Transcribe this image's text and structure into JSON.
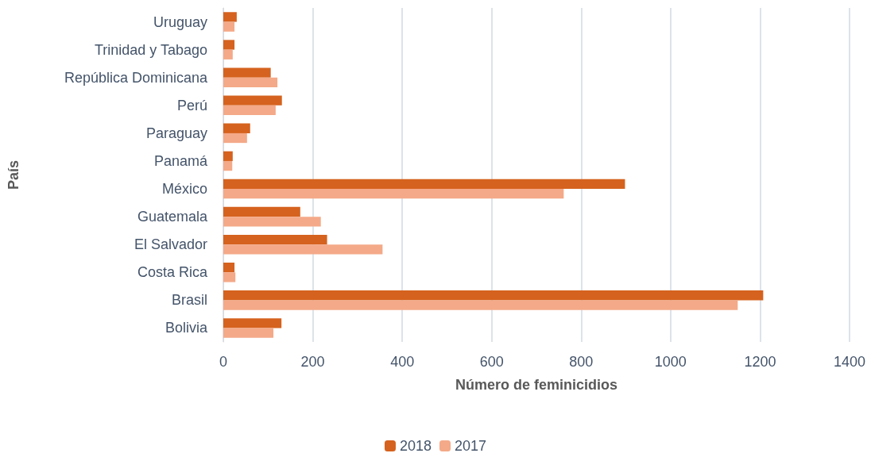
{
  "chart_data": {
    "type": "bar",
    "orientation": "horizontal",
    "xlabel": "Número de feminicidios",
    "ylabel": "País",
    "categories": [
      "Uruguay",
      "Trinidad y Tabago",
      "República Dominicana",
      "Perú",
      "Paraguay",
      "Panamá",
      "México",
      "Guatemala",
      "El Salvador",
      "Costa Rica",
      "Brasil",
      "Bolivia"
    ],
    "series": [
      {
        "name": "2018",
        "color": "#d5621e",
        "values": [
          30,
          25,
          106,
          131,
          60,
          21,
          898,
          172,
          232,
          25,
          1207,
          130
        ]
      },
      {
        "name": "2017",
        "color": "#f4a988",
        "values": [
          25,
          21,
          121,
          117,
          53,
          20,
          761,
          218,
          356,
          27,
          1150,
          112
        ]
      }
    ],
    "xlim": [
      0,
      1400
    ],
    "xticks": [
      0,
      200,
      400,
      600,
      800,
      1000,
      1200,
      1400
    ],
    "grid": "x",
    "legend": "bottom"
  }
}
